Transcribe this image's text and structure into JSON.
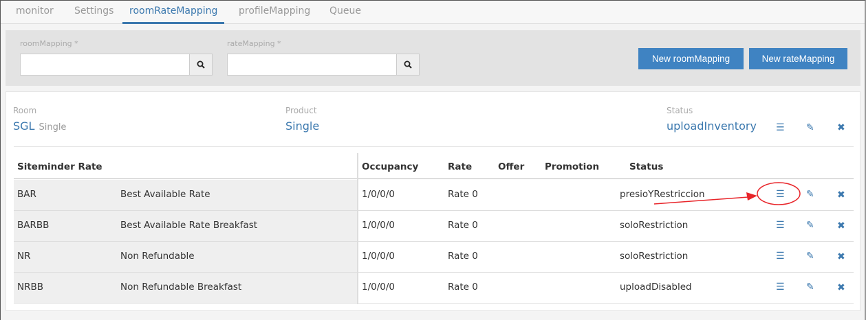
{
  "tabs": [
    {
      "label": "monitor"
    },
    {
      "label": "Settings"
    },
    {
      "label": "roomRateMapping",
      "active": true
    },
    {
      "label": "profileMapping"
    },
    {
      "label": "Queue"
    }
  ],
  "filters": {
    "room_label": "roomMapping *",
    "room_value": "",
    "rate_label": "rateMapping *",
    "rate_value": "",
    "new_room_button": "New roomMapping",
    "new_rate_button": "New rateMapping"
  },
  "room": {
    "room_label": "Room",
    "room_code": "SGL",
    "room_name": "Single",
    "product_label": "Product",
    "product": "Single",
    "status_label": "Status",
    "status": "uploadInventory"
  },
  "table": {
    "headers": {
      "siteminder_rate": "Siteminder Rate",
      "occupancy": "Occupancy",
      "rate": "Rate",
      "offer": "Offer",
      "promotion": "Promotion",
      "status": "Status"
    },
    "rows": [
      {
        "code": "BAR",
        "name": "Best Available Rate",
        "occupancy": "1/0/0/0",
        "rate": "Rate 0",
        "offer": "",
        "promotion": "",
        "status": "presioYRestriccion"
      },
      {
        "code": "BARBB",
        "name": "Best Available Rate Breakfast",
        "occupancy": "1/0/0/0",
        "rate": "Rate 0",
        "offer": "",
        "promotion": "",
        "status": "soloRestriction"
      },
      {
        "code": "NR",
        "name": "Non Refundable",
        "occupancy": "1/0/0/0",
        "rate": "Rate 0",
        "offer": "",
        "promotion": "",
        "status": "soloRestriction"
      },
      {
        "code": "NRBB",
        "name": "Non Refundable Breakfast",
        "occupancy": "1/0/0/0",
        "rate": "Rate 0",
        "offer": "",
        "promotion": "",
        "status": "uploadDisabled"
      }
    ]
  },
  "colors": {
    "accent": "#3b78ae",
    "button": "#3f83c2",
    "annotation": "#e8252a"
  },
  "icons": {
    "search": "search-icon",
    "list": "list-icon",
    "edit": "edit-icon",
    "delete": "close-icon"
  }
}
